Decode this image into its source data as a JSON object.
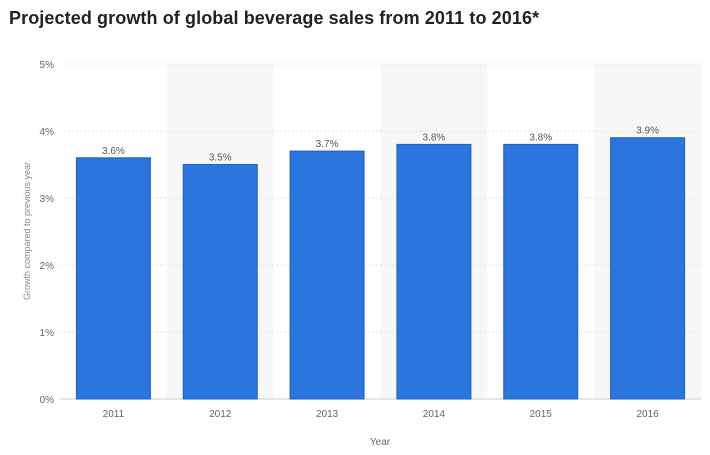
{
  "title": "Projected growth of global beverage sales from 2011 to 2016*",
  "chart_data": {
    "type": "bar",
    "categories": [
      "2011",
      "2012",
      "2013",
      "2014",
      "2015",
      "2016"
    ],
    "values": [
      3.6,
      3.5,
      3.7,
      3.8,
      3.8,
      3.9
    ],
    "data_labels": [
      "3.6%",
      "3.5%",
      "3.7%",
      "3.8%",
      "3.8%",
      "3.9%"
    ],
    "title": "Projected growth of global beverage sales from 2011 to 2016*",
    "xlabel": "Year",
    "ylabel": "Growth compared to previous year",
    "ylim": [
      0,
      5
    ],
    "yticks": [
      0,
      1,
      2,
      3,
      4,
      5
    ],
    "ytick_labels": [
      "0%",
      "1%",
      "2%",
      "3%",
      "4%",
      "5%"
    ],
    "grid": true,
    "colors": {
      "bar": "#2a75de",
      "bar_border": "#1f5fbf",
      "alt_band": "#f7f7f7",
      "grid": "#e6e6e6",
      "axis_text": "#666666",
      "label_text": "#555555"
    }
  }
}
